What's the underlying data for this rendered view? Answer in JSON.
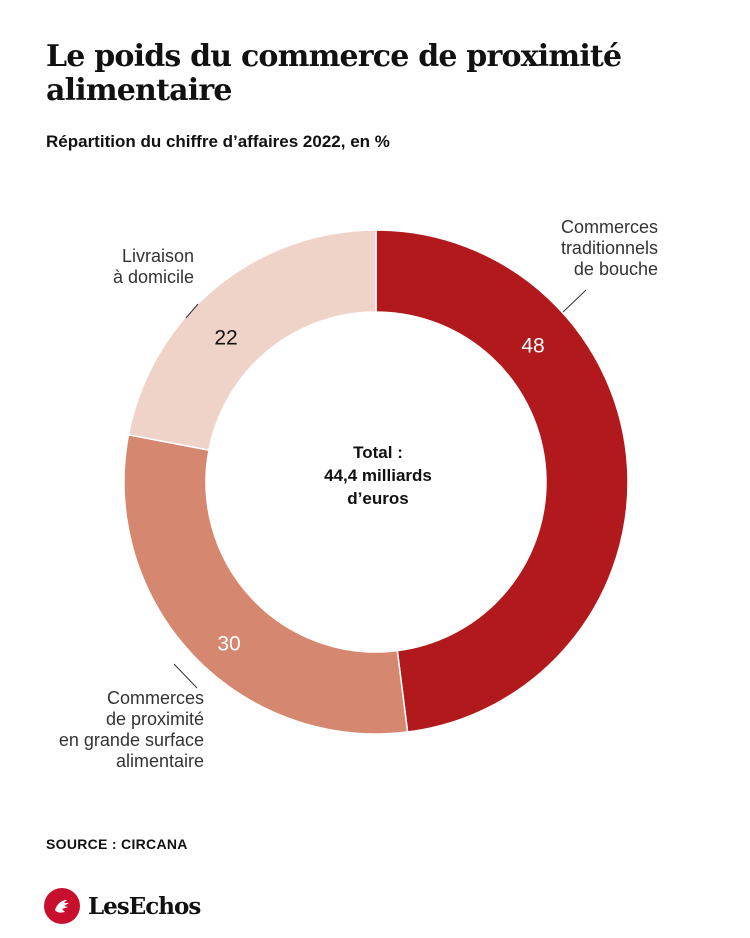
{
  "header": {
    "title": "Le poids du commerce de proximité alimentaire",
    "subtitle": "Répartition du chiffre d’affaires 2022, en %"
  },
  "chart_data": {
    "type": "pie",
    "variant": "donut",
    "title": "Le poids du commerce de proximité alimentaire",
    "subtitle": "Répartition du chiffre d’affaires 2022, en %",
    "unit": "%",
    "categories": [
      "Commerces traditionnels de bouche",
      "Commerces de proximité en grande surface alimentaire",
      "Livraison à domicile"
    ],
    "values": [
      48,
      30,
      22
    ],
    "colors": [
      "#b2191c",
      "#d5876f",
      "#efd3c8"
    ],
    "value_label_colors": [
      "#ffffff",
      "#ffffff",
      "#111111"
    ],
    "center_label": [
      "Total :",
      "44,4 milliards",
      "d’euros"
    ],
    "label_lines": [
      [
        "Commerces",
        "traditionnels",
        "de bouche"
      ],
      [
        "Commerces",
        "de proximité",
        "en grande surface",
        "alimentaire"
      ],
      [
        "Livraison",
        "à domicile"
      ]
    ]
  },
  "footer": {
    "source": "SOURCE : CIRCANA",
    "logo_text": "LesEchos",
    "logo_icon": "les-echos-rooster-icon"
  }
}
